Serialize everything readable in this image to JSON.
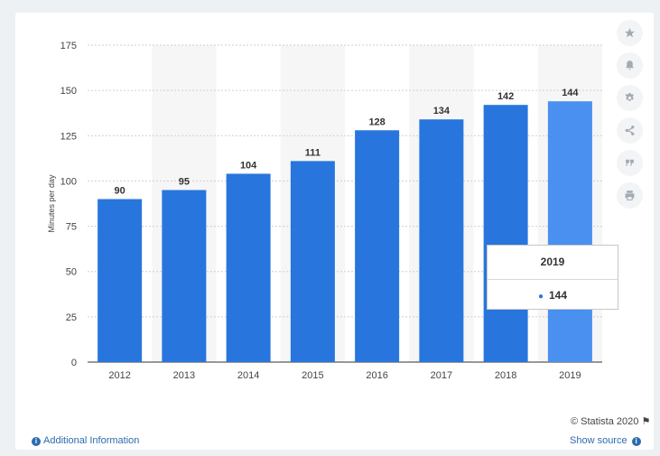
{
  "chart_data": {
    "type": "bar",
    "categories": [
      "2012",
      "2013",
      "2014",
      "2015",
      "2016",
      "2017",
      "2018",
      "2019"
    ],
    "values": [
      90,
      95,
      104,
      111,
      128,
      134,
      142,
      144
    ],
    "ylabel": "Minutes per day",
    "ylim": [
      0,
      175
    ],
    "yticks": [
      0,
      25,
      50,
      75,
      100,
      125,
      150,
      175
    ],
    "grid": true,
    "bar_color": "#2876dd",
    "highlight_color": "#4a90f0",
    "highlight_index": 7
  },
  "tooltip": {
    "title": "2019",
    "value": "144"
  },
  "toolbar": {
    "icons": [
      "star-icon",
      "bell-icon",
      "gear-icon",
      "share-icon",
      "quote-icon",
      "print-icon"
    ]
  },
  "footer": {
    "copyright": "© Statista 2020",
    "additional_info": "Additional Information",
    "show_source": "Show source"
  }
}
